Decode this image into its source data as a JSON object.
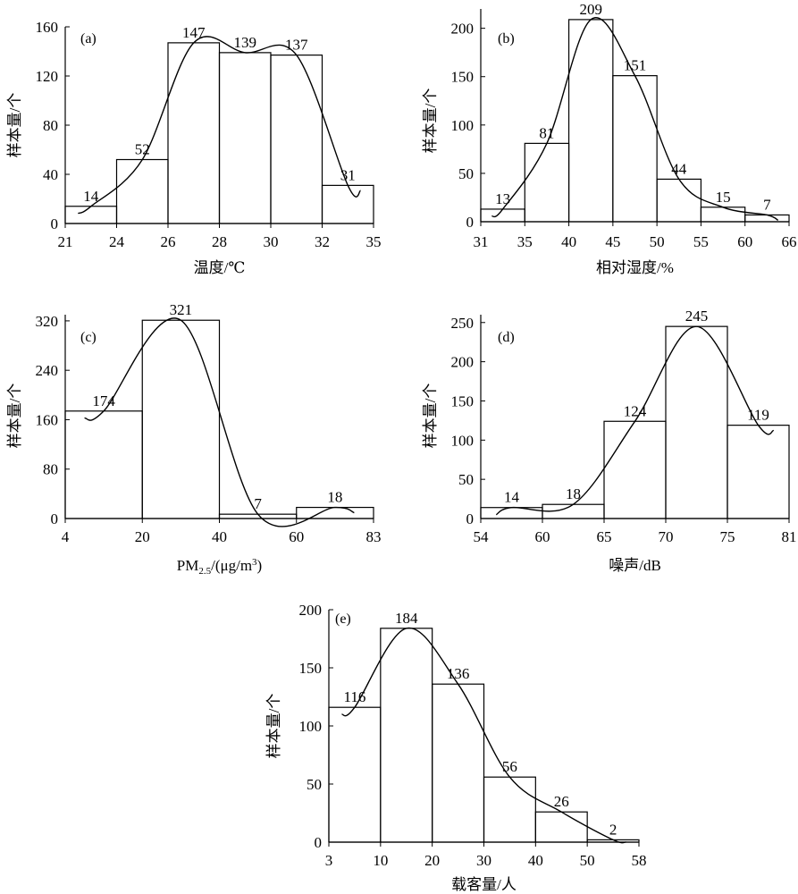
{
  "chart_data": [
    {
      "type": "bar",
      "panel": "(a)",
      "xlabel": "温度/℃",
      "ylabel": "样本量/个",
      "x_ticks": [
        "21",
        "24",
        "26",
        "28",
        "30",
        "32",
        "35"
      ],
      "y_ticks": [
        "0",
        "40",
        "80",
        "120",
        "160"
      ],
      "ylim": [
        0,
        160
      ],
      "bins": [
        [
          21,
          24
        ],
        [
          24,
          26
        ],
        [
          26,
          28
        ],
        [
          28,
          30
        ],
        [
          30,
          32
        ],
        [
          32,
          35
        ]
      ],
      "values": [
        14,
        52,
        147,
        139,
        137,
        31
      ]
    },
    {
      "type": "bar",
      "panel": "(b)",
      "xlabel": "相对湿度/%",
      "ylabel": "样本量/个",
      "x_ticks": [
        "31",
        "35",
        "40",
        "45",
        "50",
        "55",
        "60",
        "66"
      ],
      "y_ticks": [
        "0",
        "50",
        "100",
        "150",
        "200"
      ],
      "ylim": [
        0,
        220
      ],
      "bins": [
        [
          31,
          35
        ],
        [
          35,
          40
        ],
        [
          40,
          45
        ],
        [
          45,
          50
        ],
        [
          50,
          55
        ],
        [
          55,
          60
        ],
        [
          60,
          66
        ]
      ],
      "values": [
        13,
        81,
        209,
        151,
        44,
        15,
        7
      ]
    },
    {
      "type": "bar",
      "panel": "(c)",
      "xlabel": "PM",
      "xlabel_sub": "2.5",
      "xlabel_unit": "/(μg/m",
      "xlabel_sup": "3",
      "xlabel_end": ")",
      "ylabel": "样本量/个",
      "x_ticks": [
        "4",
        "20",
        "40",
        "60",
        "83"
      ],
      "y_ticks": [
        "0",
        "80",
        "160",
        "240",
        "320"
      ],
      "ylim": [
        0,
        330
      ],
      "bins": [
        [
          4,
          20
        ],
        [
          20,
          40
        ],
        [
          40,
          60
        ],
        [
          60,
          83
        ]
      ],
      "values": [
        174,
        321,
        7,
        18
      ]
    },
    {
      "type": "bar",
      "panel": "(d)",
      "xlabel": "噪声/dB",
      "ylabel": "样本量/个",
      "x_ticks": [
        "54",
        "60",
        "65",
        "70",
        "75",
        "81"
      ],
      "y_ticks": [
        "0",
        "50",
        "100",
        "150",
        "200",
        "250"
      ],
      "ylim": [
        0,
        260
      ],
      "bins": [
        [
          54,
          60
        ],
        [
          60,
          65
        ],
        [
          65,
          70
        ],
        [
          70,
          75
        ],
        [
          75,
          81
        ]
      ],
      "values": [
        14,
        18,
        124,
        245,
        119
      ]
    },
    {
      "type": "bar",
      "panel": "(e)",
      "xlabel": "载客量/人",
      "ylabel": "样本量/个",
      "x_ticks": [
        "3",
        "10",
        "20",
        "30",
        "40",
        "50",
        "58"
      ],
      "y_ticks": [
        "0",
        "50",
        "100",
        "150",
        "200"
      ],
      "ylim": [
        0,
        200
      ],
      "bins": [
        [
          3,
          10
        ],
        [
          10,
          20
        ],
        [
          20,
          30
        ],
        [
          30,
          40
        ],
        [
          40,
          50
        ],
        [
          50,
          58
        ]
      ],
      "values": [
        116,
        184,
        136,
        56,
        26,
        2
      ]
    }
  ]
}
